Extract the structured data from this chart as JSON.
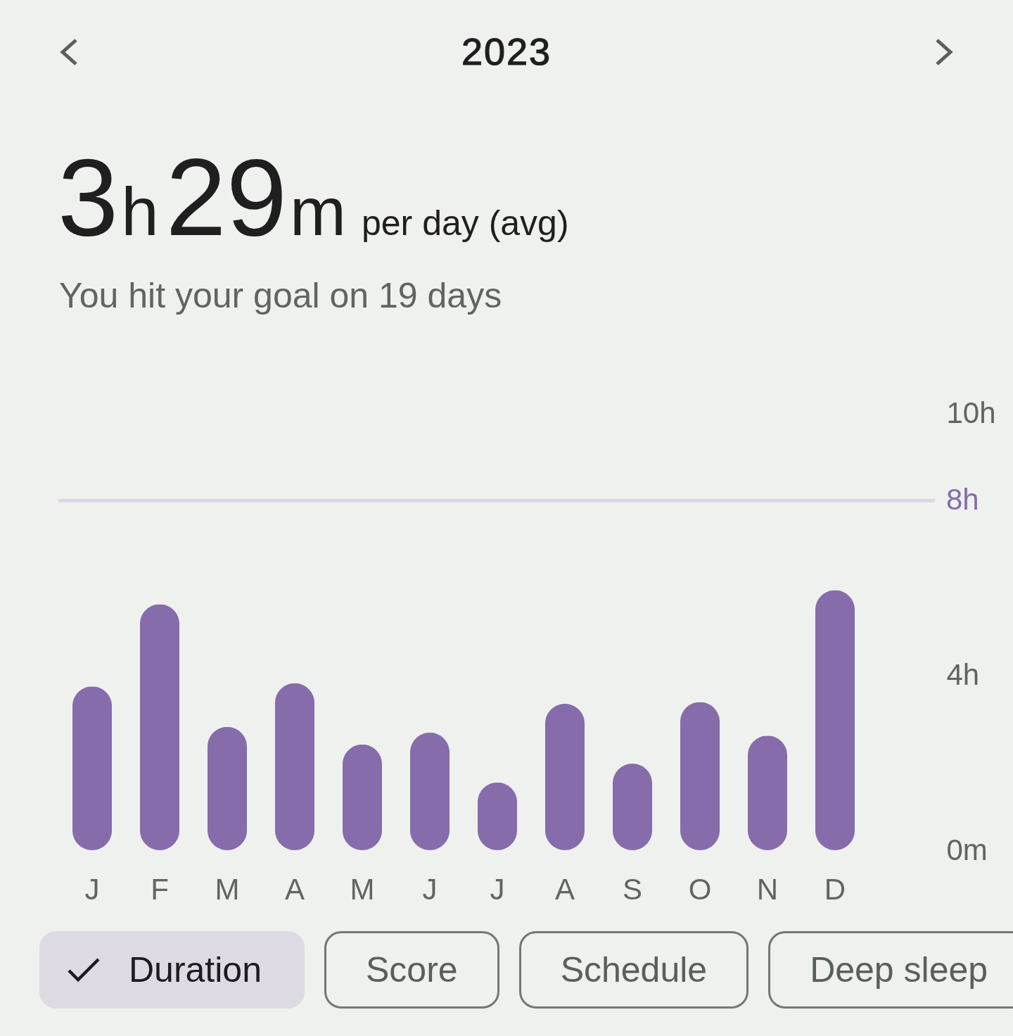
{
  "chart_data": {
    "type": "bar",
    "title": "2023",
    "subtitle": "3h29m per day (avg)",
    "annotations": [
      "You hit your goal on 19 days",
      "Duration",
      "Score",
      "Schedule",
      "Deep sleep"
    ],
    "categories": [
      "J",
      "F",
      "M",
      "A",
      "M",
      "J",
      "J",
      "A",
      "S",
      "O",
      "N",
      "D"
    ],
    "values": [
      3.75,
      5.63,
      2.82,
      3.82,
      2.42,
      2.69,
      1.55,
      3.35,
      1.98,
      3.39,
      2.62,
      5.95
    ],
    "color": "#866cab",
    "ylim": [
      0,
      10
    ],
    "yticks": [
      {
        "value": 0,
        "label": "0m"
      },
      {
        "value": 4,
        "label": "4h"
      },
      {
        "value": 10,
        "label": "10h"
      }
    ],
    "ref_lines": [
      {
        "axis": "y",
        "value": 8,
        "label": "8h",
        "color": "#dcd7e3"
      }
    ]
  }
}
